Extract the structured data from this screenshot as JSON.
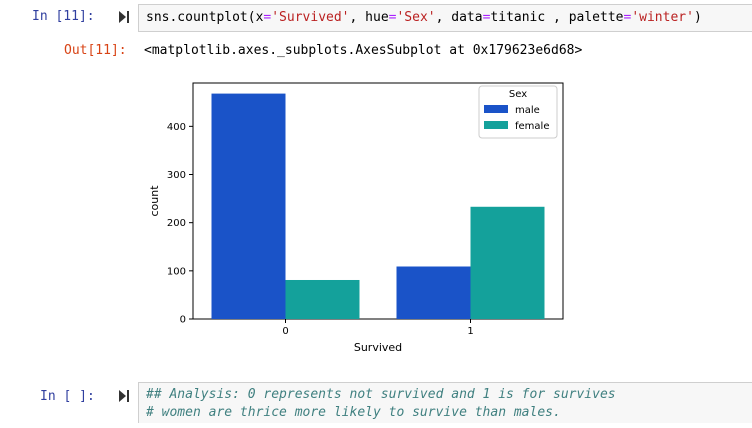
{
  "cell1": {
    "in_prompt": "In [11]:",
    "code": {
      "fn": "sns.countplot(x",
      "eq1": "=",
      "s1": "'Survived'",
      "p1": ", hue",
      "eq2": "=",
      "s2": "'Sex'",
      "p2": ", data",
      "eq3": "=",
      "p3": "titanic , palette",
      "eq4": "=",
      "s3": "'winter'",
      "p4": ")"
    },
    "out_prompt": "Out[11]:",
    "out_text": "<matplotlib.axes._subplots.AxesSubplot at 0x179623e6d68>"
  },
  "cell2": {
    "in_prompt": "In [ ]:",
    "line1": "## Analysis: 0 represents not survived and 1 is for survives",
    "line2": "# women are thrice more likely to survive than males."
  },
  "chart_data": {
    "type": "bar",
    "categories": [
      "0",
      "1"
    ],
    "series": [
      {
        "name": "male",
        "values": [
          468,
          109
        ],
        "color": "#1a53c8"
      },
      {
        "name": "female",
        "values": [
          81,
          233
        ],
        "color": "#14a19b"
      }
    ],
    "xlabel": "Survived",
    "ylabel": "count",
    "ylim": [
      0,
      490
    ],
    "yticks": [
      0,
      100,
      200,
      300,
      400
    ],
    "legend_title": "Sex",
    "legend_position": "top-right",
    "grid": false
  }
}
